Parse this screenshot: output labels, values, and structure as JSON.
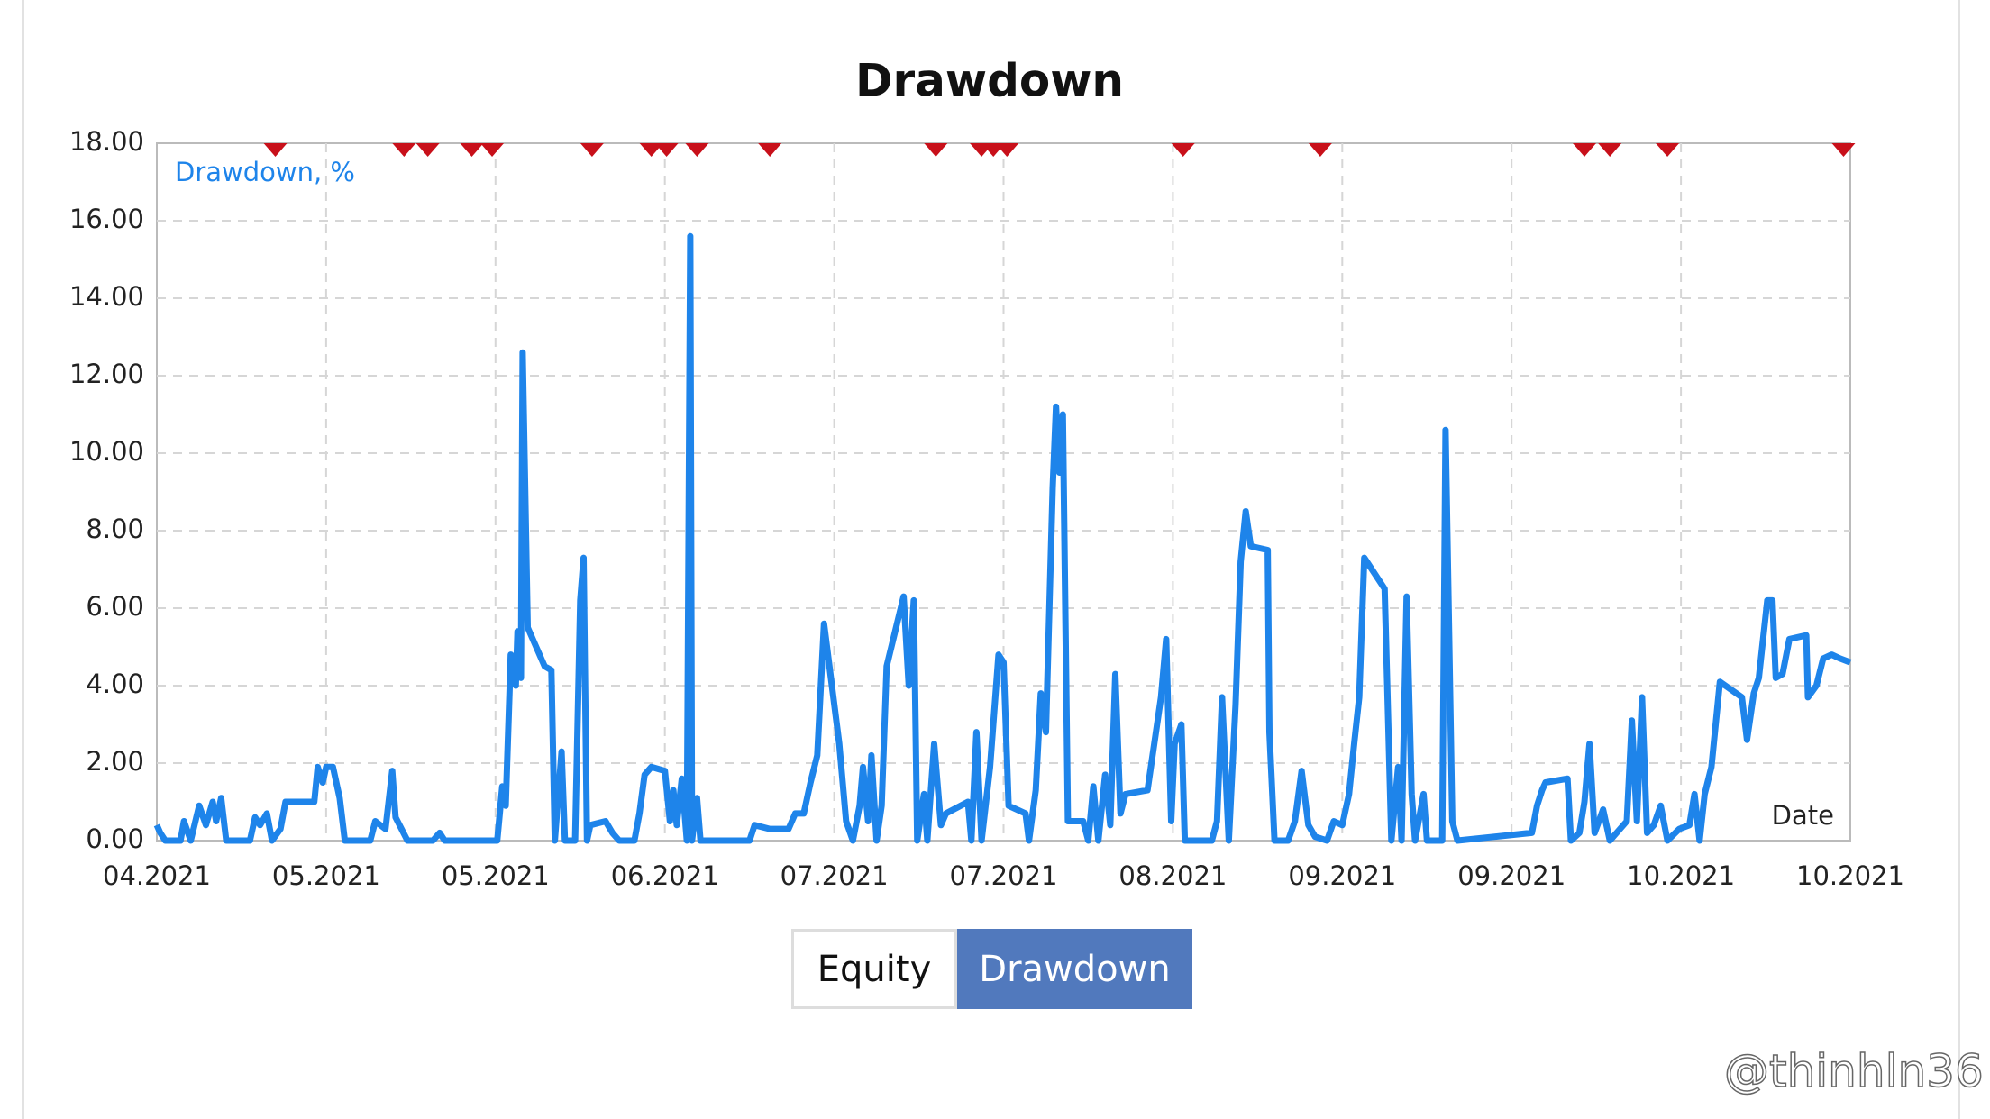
{
  "chart_data": {
    "type": "line",
    "title": "Drawdown",
    "series": [
      {
        "name": "Drawdown, %",
        "color": "#1e84ea",
        "x": [
          0,
          0.02,
          0.05,
          0.14,
          0.16,
          0.2,
          0.25,
          0.29,
          0.33,
          0.35,
          0.38,
          0.41,
          0.55,
          0.58,
          0.61,
          0.65,
          0.68,
          0.73,
          0.76,
          0.93,
          0.95,
          0.98,
          1.0,
          1.04,
          1.08,
          1.11,
          1.26,
          1.29,
          1.35,
          1.39,
          1.41,
          1.48,
          1.63,
          1.67,
          1.7,
          2.01,
          2.04,
          2.06,
          2.09,
          2.12,
          2.13,
          2.15,
          2.16,
          2.19,
          2.29,
          2.33,
          2.35,
          2.39,
          2.41,
          2.47,
          2.5,
          2.52,
          2.54,
          2.56,
          2.65,
          2.69,
          2.73,
          2.82,
          2.85,
          2.88,
          2.92,
          3.0,
          3.03,
          3.05,
          3.07,
          3.1,
          3.13,
          3.15,
          3.16,
          3.19,
          3.21,
          3.5,
          3.53,
          3.62,
          3.73,
          3.77,
          3.82,
          3.86,
          3.9,
          3.94,
          4.03,
          4.07,
          4.11,
          4.15,
          4.17,
          4.2,
          4.22,
          4.25,
          4.28,
          4.31,
          4.41,
          4.44,
          4.47,
          4.49,
          4.53,
          4.55,
          4.59,
          4.63,
          4.66,
          4.79,
          4.81,
          4.84,
          4.87,
          4.92,
          4.97,
          5.0,
          5.03,
          5.13,
          5.15,
          5.19,
          5.22,
          5.25,
          5.29,
          5.31,
          5.33,
          5.35,
          5.38,
          5.47,
          5.5,
          5.53,
          5.56,
          5.6,
          5.63,
          5.66,
          5.69,
          5.72,
          5.85,
          5.89,
          5.93,
          5.96,
          5.99,
          6.01,
          6.05,
          6.07,
          6.23,
          6.26,
          6.29,
          6.33,
          6.37,
          6.4,
          6.43,
          6.46,
          6.56,
          6.57,
          6.6,
          6.68,
          6.72,
          6.76,
          6.8,
          6.84,
          6.91,
          6.95,
          7.0,
          7.04,
          7.07,
          7.1,
          7.13,
          7.25,
          7.29,
          7.33,
          7.35,
          7.38,
          7.41,
          7.43,
          7.48,
          7.5,
          7.59,
          7.61,
          7.65,
          7.68,
          8.12,
          8.15,
          8.18,
          8.2,
          8.33,
          8.35,
          8.4,
          8.43,
          8.46,
          8.49,
          8.54,
          8.58,
          8.68,
          8.71,
          8.74,
          8.77,
          8.8,
          8.84,
          8.88,
          8.92,
          8.99,
          9.05,
          9.08,
          9.11,
          9.14,
          9.18,
          9.23,
          9.36,
          9.39,
          9.43,
          9.46,
          9.51,
          9.54,
          9.56,
          9.6,
          9.64,
          9.74,
          9.75,
          9.8,
          9.84,
          9.89,
          9.94,
          10.0
        ],
        "values": [
          0.4,
          0.2,
          0,
          0,
          0.5,
          0,
          0.9,
          0.4,
          1.0,
          0.5,
          1.1,
          0,
          0,
          0.6,
          0.4,
          0.7,
          0,
          0.3,
          1.0,
          1.0,
          1.9,
          1.5,
          1.9,
          1.9,
          1.1,
          0,
          0,
          0.5,
          0.3,
          1.8,
          0.6,
          0,
          0,
          0.2,
          0,
          0,
          1.4,
          0.9,
          4.8,
          4.0,
          5.4,
          4.2,
          12.6,
          5.5,
          4.5,
          4.4,
          0,
          2.3,
          0,
          0,
          6.2,
          7.3,
          0,
          0.4,
          0.5,
          0.2,
          0,
          0,
          0.7,
          1.7,
          1.9,
          1.8,
          0.5,
          1.3,
          0.4,
          1.6,
          0,
          15.6,
          0,
          1.1,
          0,
          0,
          0.4,
          0.3,
          0.3,
          0.7,
          0.7,
          1.5,
          2.2,
          5.6,
          2.5,
          0.5,
          0,
          0.9,
          1.9,
          0.5,
          2.2,
          0,
          0.9,
          4.5,
          6.3,
          4.0,
          6.2,
          0,
          1.2,
          0,
          2.5,
          0.4,
          0.7,
          1.0,
          0,
          2.8,
          0,
          1.9,
          4.8,
          4.6,
          0.9,
          0.7,
          0,
          1.3,
          3.8,
          2.8,
          9.1,
          11.2,
          9.5,
          11.0,
          0.5,
          0.5,
          0,
          1.4,
          0,
          1.7,
          0.4,
          4.3,
          0.7,
          1.2,
          1.3,
          2.5,
          3.7,
          5.2,
          0.5,
          2.5,
          3.0,
          0,
          0,
          0.5,
          3.7,
          0,
          3.5,
          7.2,
          8.5,
          7.6,
          7.5,
          2.8,
          0,
          0,
          0.5,
          1.8,
          0.4,
          0.1,
          0,
          0.5,
          0.4,
          1.2,
          2.5,
          3.7,
          7.3,
          6.5,
          0,
          1.9,
          0,
          6.3,
          1.2,
          0,
          1.2,
          0,
          0,
          10.6,
          0.5,
          0,
          0.2,
          0.9,
          1.3,
          1.5,
          1.6,
          0,
          0.2,
          1.0,
          2.5,
          0.2,
          0.8,
          0,
          0.5,
          3.1,
          0.5,
          3.7,
          0.2,
          0.4,
          0.9,
          0,
          0.3,
          0.4,
          1.2,
          0,
          1.2,
          1.9,
          4.1,
          3.7,
          2.6,
          3.8,
          4.2,
          6.2,
          6.2,
          4.2,
          4.3,
          5.2,
          5.3,
          3.7,
          4.0,
          4.7,
          4.8,
          4.7,
          4.6
        ]
      }
    ],
    "markers": {
      "color": "#c8101a",
      "x": [
        0.7,
        1.46,
        1.6,
        1.86,
        1.98,
        2.57,
        2.92,
        3.01,
        3.19,
        3.62,
        4.6,
        4.87,
        4.94,
        5.02,
        6.06,
        6.87,
        8.43,
        8.58,
        8.92,
        9.96
      ]
    },
    "x_axis_label": "Date",
    "xlim": [
      0,
      10
    ],
    "xticks": [
      {
        "value": 0,
        "label": "04.2021"
      },
      {
        "value": 1,
        "label": "05.2021"
      },
      {
        "value": 2,
        "label": "05.2021"
      },
      {
        "value": 3,
        "label": "06.2021"
      },
      {
        "value": 4,
        "label": "07.2021"
      },
      {
        "value": 5,
        "label": "07.2021"
      },
      {
        "value": 6,
        "label": "08.2021"
      },
      {
        "value": 7,
        "label": "09.2021"
      },
      {
        "value": 8,
        "label": "09.2021"
      },
      {
        "value": 9,
        "label": "10.2021"
      },
      {
        "value": 10,
        "label": "10.2021"
      }
    ],
    "ylim": [
      0,
      18
    ],
    "yticks": [
      {
        "value": 0,
        "label": "0.00"
      },
      {
        "value": 2,
        "label": "2.00"
      },
      {
        "value": 4,
        "label": "4.00"
      },
      {
        "value": 6,
        "label": "6.00"
      },
      {
        "value": 8,
        "label": "8.00"
      },
      {
        "value": 10,
        "label": "10.00"
      },
      {
        "value": 12,
        "label": "12.00"
      },
      {
        "value": 14,
        "label": "14.00"
      },
      {
        "value": 16,
        "label": "16.00"
      },
      {
        "value": 18,
        "label": "18.00"
      }
    ],
    "grid": true
  },
  "buttons": [
    "Equity",
    "Drawdown"
  ],
  "watermark": "@thinhln36"
}
